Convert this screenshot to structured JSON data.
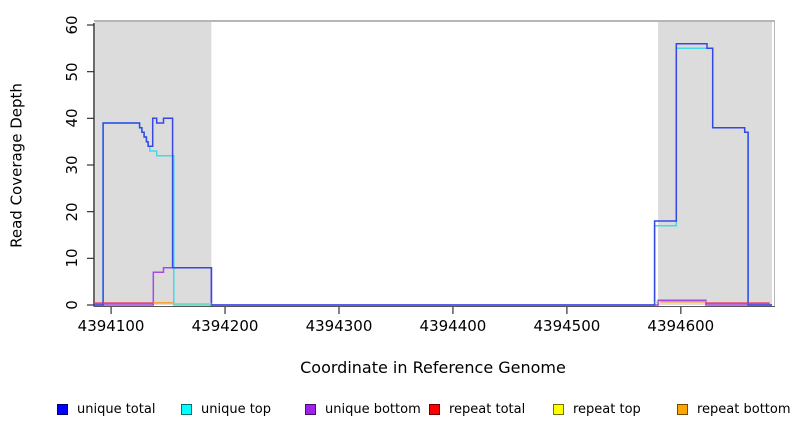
{
  "figure": {
    "background": "#ffffff"
  },
  "chart_data": {
    "type": "line",
    "title": "",
    "xlabel": "Coordinate in Reference Genome",
    "ylabel": "Read Coverage Depth",
    "xlim": [
      4394085,
      4394680
    ],
    "ylim": [
      0,
      60
    ],
    "xticks": [
      4394100,
      4394200,
      4394300,
      4394400,
      4394500,
      4394600
    ],
    "yticks": [
      0,
      10,
      20,
      30,
      40,
      50,
      60
    ],
    "grid": false,
    "legend_position": "bottom",
    "shaded_repeat_regions": [
      {
        "start": 4394086,
        "end": 4394188,
        "color": "#dcdcdc"
      },
      {
        "start": 4394580,
        "end": 4394680,
        "color": "#dcdcdc"
      }
    ],
    "series": [
      {
        "name": "unique total",
        "legend_color": "#0000ff",
        "plot_color": "#3548e6",
        "draw_order": 3,
        "segments": [
          [
            [
              4394085,
              0
            ],
            [
              4394093,
              0
            ],
            [
              4394093,
              39
            ],
            [
              4394125,
              39
            ],
            [
              4394125,
              38
            ],
            [
              4394127,
              38
            ],
            [
              4394127,
              37
            ],
            [
              4394129,
              37
            ],
            [
              4394129,
              36
            ],
            [
              4394131,
              36
            ],
            [
              4394131,
              35
            ],
            [
              4394132.5,
              35
            ],
            [
              4394132.5,
              34
            ],
            [
              4394136.5,
              34
            ],
            [
              4394136.5,
              40
            ],
            [
              4394140,
              40
            ],
            [
              4394140,
              39
            ],
            [
              4394146,
              39
            ],
            [
              4394146,
              40
            ],
            [
              4394154,
              40
            ],
            [
              4394154,
              8
            ],
            [
              4394188,
              8
            ],
            [
              4394188,
              0
            ],
            [
              4394577,
              0
            ],
            [
              4394577,
              18
            ],
            [
              4394596,
              18
            ],
            [
              4394596,
              56
            ],
            [
              4394623,
              56
            ],
            [
              4394623,
              55
            ],
            [
              4394628,
              55
            ],
            [
              4394628,
              38
            ],
            [
              4394656,
              38
            ],
            [
              4394656,
              37
            ],
            [
              4394659,
              37
            ],
            [
              4394659,
              0
            ],
            [
              4394680,
              0
            ]
          ]
        ]
      },
      {
        "name": "unique top",
        "legend_color": "#00ffff",
        "plot_color": "#45d9e6",
        "draw_order": 1,
        "segments": [
          [
            [
              4394093,
              0
            ],
            [
              4394093,
              39
            ],
            [
              4394125,
              39
            ],
            [
              4394125,
              38
            ],
            [
              4394127,
              38
            ],
            [
              4394127,
              37
            ],
            [
              4394129,
              37
            ],
            [
              4394129,
              36
            ],
            [
              4394131,
              36
            ],
            [
              4394131,
              35
            ],
            [
              4394132.5,
              35
            ],
            [
              4394132.5,
              34
            ],
            [
              4394134,
              34
            ],
            [
              4394134,
              33
            ],
            [
              4394140,
              33
            ],
            [
              4394140,
              32
            ],
            [
              4394155,
              32
            ],
            [
              4394155,
              0
            ],
            [
              4394188,
              0
            ]
          ],
          [
            [
              4394577,
              0
            ],
            [
              4394577,
              17
            ],
            [
              4394596,
              17
            ],
            [
              4394596,
              55
            ],
            [
              4394628,
              55
            ],
            [
              4394628,
              38
            ],
            [
              4394656,
              38
            ],
            [
              4394656,
              37
            ],
            [
              4394659,
              37
            ],
            [
              4394659,
              0
            ]
          ]
        ]
      },
      {
        "name": "unique bottom",
        "legend_color": "#a020f0",
        "plot_color": "#a64ae4",
        "draw_order": 2,
        "segments": [
          [
            [
              4394085,
              0
            ],
            [
              4394137,
              0
            ],
            [
              4394137,
              7
            ],
            [
              4394146,
              7
            ],
            [
              4394146,
              8
            ],
            [
              4394188,
              8
            ],
            [
              4394188,
              0
            ],
            [
              4394580,
              0
            ],
            [
              4394580,
              1
            ],
            [
              4394622,
              1
            ],
            [
              4394622,
              0
            ],
            [
              4394680,
              0
            ]
          ]
        ]
      },
      {
        "name": "repeat total",
        "legend_color": "#ff0000",
        "plot_color": "#e73060",
        "draw_order": 4,
        "segments": [
          [
            [
              4394085,
              0.4
            ],
            [
              4394137,
              0.4
            ]
          ],
          [
            [
              4394622,
              0.4
            ],
            [
              4394678,
              0.4
            ]
          ]
        ]
      },
      {
        "name": "repeat top",
        "legend_color": "#ffff00",
        "plot_color": "#8fdc9e",
        "draw_order": 6,
        "segments": [
          [
            [
              4394155,
              0.25
            ],
            [
              4394188,
              0.25
            ]
          ],
          [
            [
              4394577,
              0.55
            ],
            [
              4394580,
              0.55
            ]
          ]
        ]
      },
      {
        "name": "repeat bottom",
        "legend_color": "#ffa500",
        "plot_color": "#ff9d20",
        "draw_order": 5,
        "segments": [
          [
            [
              4394137,
              0.45
            ],
            [
              4394155,
              0.45
            ]
          ],
          [
            [
              4394582,
              0.7
            ],
            [
              4394622,
              0.7
            ]
          ]
        ]
      }
    ]
  },
  "legend": {
    "items": [
      {
        "label": "unique total",
        "color": "#0000ff"
      },
      {
        "label": "unique top",
        "color": "#00ffff"
      },
      {
        "label": "unique bottom",
        "color": "#a020f0"
      },
      {
        "label": "repeat total",
        "color": "#ff0000"
      },
      {
        "label": "repeat top",
        "color": "#ffff00"
      },
      {
        "label": "repeat bottom",
        "color": "#ffa500"
      }
    ]
  }
}
